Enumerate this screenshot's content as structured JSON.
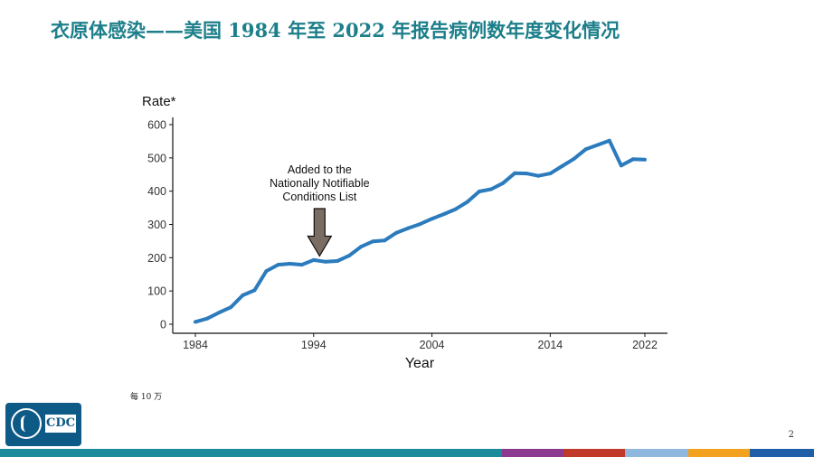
{
  "title": "衣原体感染——美国 1984 年至 2022 年报告病例数年度变化情况",
  "footnote": "每 10 万",
  "page_number": "2",
  "logo_text": "CDC",
  "colors": {
    "title": "#1c7f8a",
    "line": "#2b7bbd",
    "arrow": "#7a6e63",
    "logo": "#0e5a86",
    "bottom_bar": [
      "#1a8b9a",
      "#1a8b9a",
      "#1a8b9a",
      "#1a8b9a",
      "#1a8b9a",
      "#1a8b9a",
      "#1a8b9a",
      "#1a8b9a",
      "#1a8b9a",
      "#1a8b9a",
      "#1a8b9a",
      "#1a8b9a",
      "#1a8b9a",
      "#1a8b9a",
      "#8b3a8f",
      "#c0392b",
      "#d9652b",
      "#8fb8de",
      "#f2a21e",
      "#1f5fa8"
    ]
  },
  "chart_data": {
    "type": "line",
    "ylabel": "Rate*",
    "xlabel": "Year",
    "xlim": [
      1984,
      2022
    ],
    "ylim": [
      0,
      600
    ],
    "x_ticks": [
      1984,
      1994,
      2004,
      2014,
      2022
    ],
    "y_ticks": [
      0,
      100,
      200,
      300,
      400,
      500,
      600
    ],
    "annotation": {
      "lines": [
        "Added to the",
        "Nationally Notifiable",
        "Conditions List"
      ],
      "arrow_year": 1994.5,
      "arrow_value": 205
    },
    "series": [
      {
        "x": [
          1984,
          1985,
          1986,
          1987,
          1988,
          1989,
          1990,
          1991,
          1992,
          1993,
          1994,
          1995,
          1996,
          1997,
          1998,
          1999,
          2000,
          2001,
          2002,
          2003,
          2004,
          2005,
          2006,
          2007,
          2008,
          2009,
          2010,
          2011,
          2012,
          2013,
          2014,
          2015,
          2016,
          2017,
          2018,
          2019,
          2020,
          2021,
          2022
        ],
        "values": [
          7,
          17,
          35,
          51,
          87,
          102,
          160,
          179,
          182,
          179,
          193,
          188,
          190,
          206,
          233,
          249,
          252,
          275,
          289,
          301,
          317,
          331,
          346,
          368,
          399,
          406,
          424,
          454,
          453,
          446,
          453,
          475,
          497,
          526,
          539,
          552,
          477,
          496,
          495
        ]
      }
    ]
  }
}
